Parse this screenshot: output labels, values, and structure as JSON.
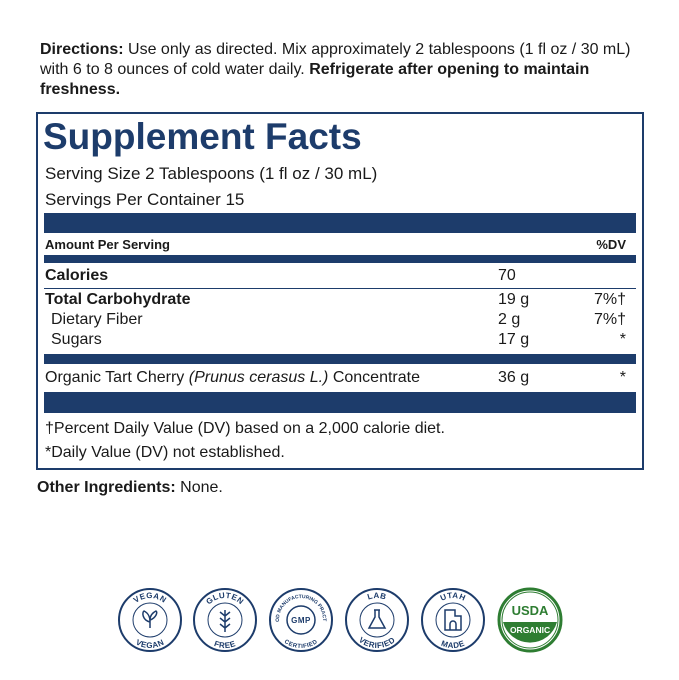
{
  "directions": {
    "label": "Directions:",
    "text": "Use only as directed. Mix approximately 2 tablespoons (1 fl oz / 30 mL) with 6 to 8 ounces of cold water daily.",
    "emphasis": "Refrigerate after opening to maintain freshness."
  },
  "facts": {
    "title": "Supplement Facts",
    "serving_size": "Serving Size 2 Tablespoons (1 fl oz / 30 mL)",
    "servings_per_container": "Servings Per Container 15",
    "header": {
      "amount": "Amount Per Serving",
      "dv": "%DV"
    },
    "calories": {
      "name": "Calories",
      "amount": "70"
    },
    "rows": [
      {
        "name": "Total Carbohydrate",
        "amount": "19 g",
        "dv": "7%†"
      },
      {
        "name": "Dietary Fiber",
        "amount": "2 g",
        "dv": "7%†"
      },
      {
        "name": "Sugars",
        "amount": "17 g",
        "dv": "*"
      }
    ],
    "ingredient": {
      "name_start": "Organic Tart Cherry",
      "name_latin": "(Prunus cerasus L.)",
      "name_end": "Concentrate",
      "amount": "36 g",
      "dv": "*"
    },
    "footnotes": [
      "†Percent Daily Value (DV) based on a 2,000 calorie diet.",
      "*Daily Value (DV) not established."
    ]
  },
  "other_ingredients": {
    "label": "Other Ingredients:",
    "text": "None."
  },
  "badges": [
    {
      "top": "VEGAN",
      "bottom": "VEGAN"
    },
    {
      "top": "GLUTEN",
      "bottom": "FREE"
    },
    {
      "top": "GOOD MANUFACTURING PRACTICE",
      "center": "GMP",
      "bottom": "CERTIFIED"
    },
    {
      "top": "LAB",
      "bottom": "VERIFIED"
    },
    {
      "top": "UTAH",
      "bottom": "MADE"
    },
    {
      "top": "USDA",
      "center": "ORGANIC"
    }
  ]
}
